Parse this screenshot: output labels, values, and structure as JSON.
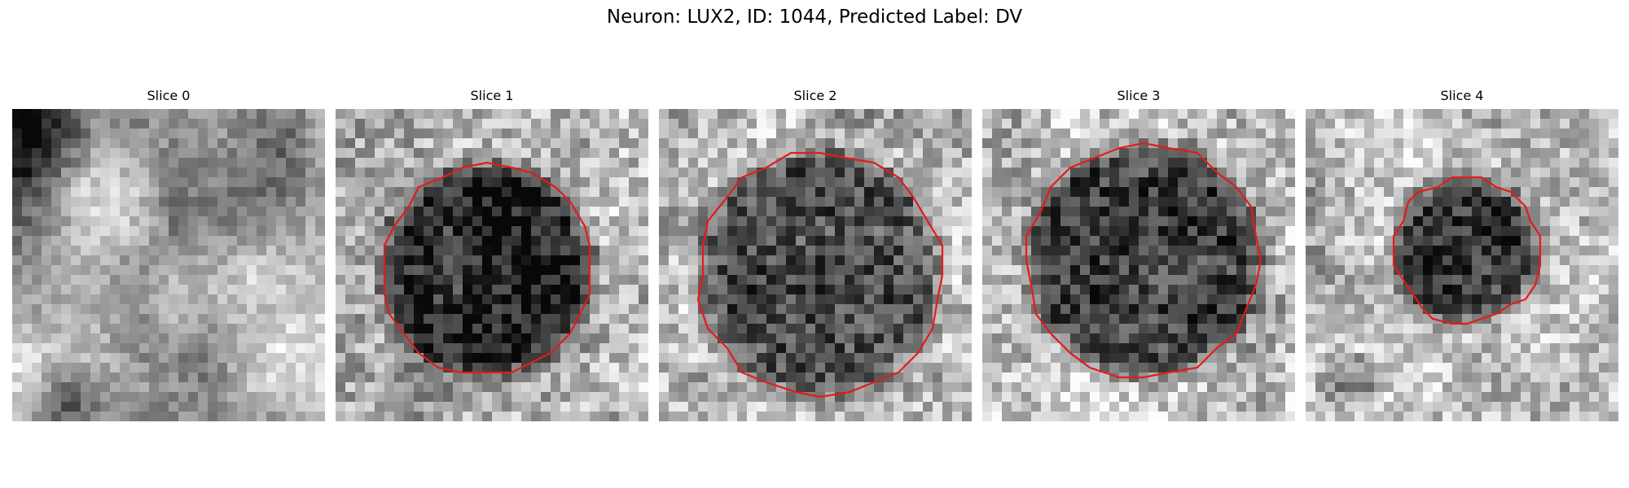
{
  "figure": {
    "title": "Neuron: LUX2, ID: 1044, Predicted Label: DV"
  },
  "panels": [
    {
      "title": "Slice 0",
      "has_contour": false
    },
    {
      "title": "Slice 1",
      "has_contour": true
    },
    {
      "title": "Slice 2",
      "has_contour": true
    },
    {
      "title": "Slice 3",
      "has_contour": true
    },
    {
      "title": "Slice 4",
      "has_contour": true
    }
  ],
  "colors": {
    "contour": "#e41a1c"
  }
}
